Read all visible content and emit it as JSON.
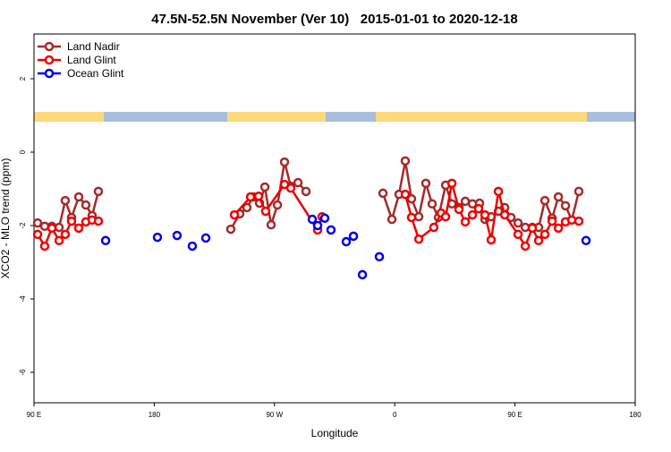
{
  "chart_data": {
    "type": "line",
    "title": "47.5N-52.5N November (Ver 10)   2015-01-01 to 2020-12-18",
    "x_label": "Longitude",
    "y_label": "XCO2 - MLO trend (ppm)",
    "xlim": [
      90,
      540
    ],
    "ylim": [
      -6.83,
      3.22
    ],
    "xticks": [
      {
        "value": 90,
        "label": "90 E"
      },
      180,
      {
        "value": 270,
        "label": "90 W"
      },
      {
        "value": 360,
        "label": "0"
      },
      {
        "value": 450,
        "label": "90 E"
      },
      {
        "value": 540,
        "label": "180"
      }
    ],
    "yticks": [
      2,
      0,
      -2,
      -4,
      -6
    ],
    "legend": "top-left",
    "series": [
      {
        "name": "Land Nadir",
        "color": "#a52a2a",
        "line": true,
        "x": [
          92.7,
          98.0,
          103.4,
          108.8,
          113.4,
          118.1,
          123.5,
          128.8,
          133.5,
          138.2,
          null,
          237.3,
          244.0,
          249.4,
          254.1,
          258.8,
          262.8,
          267.5,
          272.2,
          277.5,
          282.2,
          287.6,
          293.6,
          null,
          351.2,
          357.9,
          363.2,
          367.9,
          372.6,
          378.0,
          383.3,
          388.0,
          392.7,
          398.1,
          402.8,
          408.1,
          412.8,
          418.2,
          423.5,
          427.5,
          432.2,
          437.6,
          442.3,
          447.0,
          452.3,
          457.7,
          463.0,
          467.7,
          472.4,
          477.8,
          482.5,
          487.8,
          492.5,
          497.8
        ],
        "values": [
          -1.93,
          -2.02,
          -2.02,
          -2.05,
          -1.32,
          -1.78,
          -1.22,
          -1.44,
          -1.73,
          -1.07,
          null,
          -2.1,
          -1.68,
          -1.51,
          -1.22,
          -1.39,
          -0.95,
          -1.98,
          -1.44,
          -0.27,
          -0.93,
          -0.83,
          -1.07,
          null,
          -1.12,
          -1.83,
          -1.15,
          -0.24,
          -1.27,
          -1.76,
          -0.85,
          -1.41,
          -1.78,
          -0.9,
          -1.41,
          -1.51,
          -1.34,
          -1.41,
          -1.39,
          -1.83,
          -1.76,
          -1.61,
          -1.51,
          -1.78,
          -1.93,
          -2.05,
          -2.05,
          -2.05,
          -1.32,
          -1.8,
          -1.22,
          -1.46,
          -1.85,
          -1.07
        ]
      },
      {
        "name": "Land Glint",
        "color": "#ee0000",
        "line": true,
        "x": [
          92.7,
          98.0,
          103.4,
          108.8,
          113.4,
          118.1,
          123.5,
          128.8,
          133.5,
          138.2,
          null,
          240.0,
          252.1,
          258.1,
          263.4,
          277.5,
          282.2,
          302.3,
          305.6,
          null,
          367.9,
          372.6,
          378.0,
          389.3,
          394.7,
          398.1,
          402.8,
          408.1,
          412.8,
          418.2,
          422.8,
          427.5,
          432.2,
          437.6,
          442.3,
          452.3,
          457.7,
          463.0,
          467.7,
          472.4,
          477.8,
          482.5,
          487.8,
          492.5,
          497.8
        ],
        "values": [
          -2.24,
          -2.56,
          -2.07,
          -2.41,
          -2.24,
          -1.88,
          -2.07,
          -1.9,
          -1.85,
          -1.88,
          null,
          -1.71,
          -1.22,
          -1.2,
          -1.61,
          -0.88,
          -0.98,
          -2.12,
          -1.76,
          null,
          -1.15,
          -1.78,
          -2.37,
          -2.05,
          -1.66,
          -1.76,
          -0.85,
          -1.56,
          -1.9,
          -1.71,
          -1.54,
          -1.71,
          -2.39,
          -1.07,
          -1.71,
          -2.24,
          -2.56,
          -2.07,
          -2.41,
          -2.24,
          -1.88,
          -2.07,
          -1.9,
          -1.85,
          -1.88
        ]
      },
      {
        "name": "Ocean Glint",
        "color": "#0000ee",
        "line": false,
        "x": [
          143.6,
          182.4,
          197.1,
          208.5,
          218.6,
          298.3,
          302.3,
          307.6,
          312.3,
          323.7,
          329.1,
          335.8,
          348.5,
          503.2
        ],
        "values": [
          -2.41,
          -2.32,
          -2.27,
          -2.56,
          -2.34,
          -1.83,
          -2.0,
          -1.8,
          -2.12,
          -2.44,
          -2.29,
          -3.34,
          -2.85,
          -2.41
        ]
      }
    ]
  }
}
